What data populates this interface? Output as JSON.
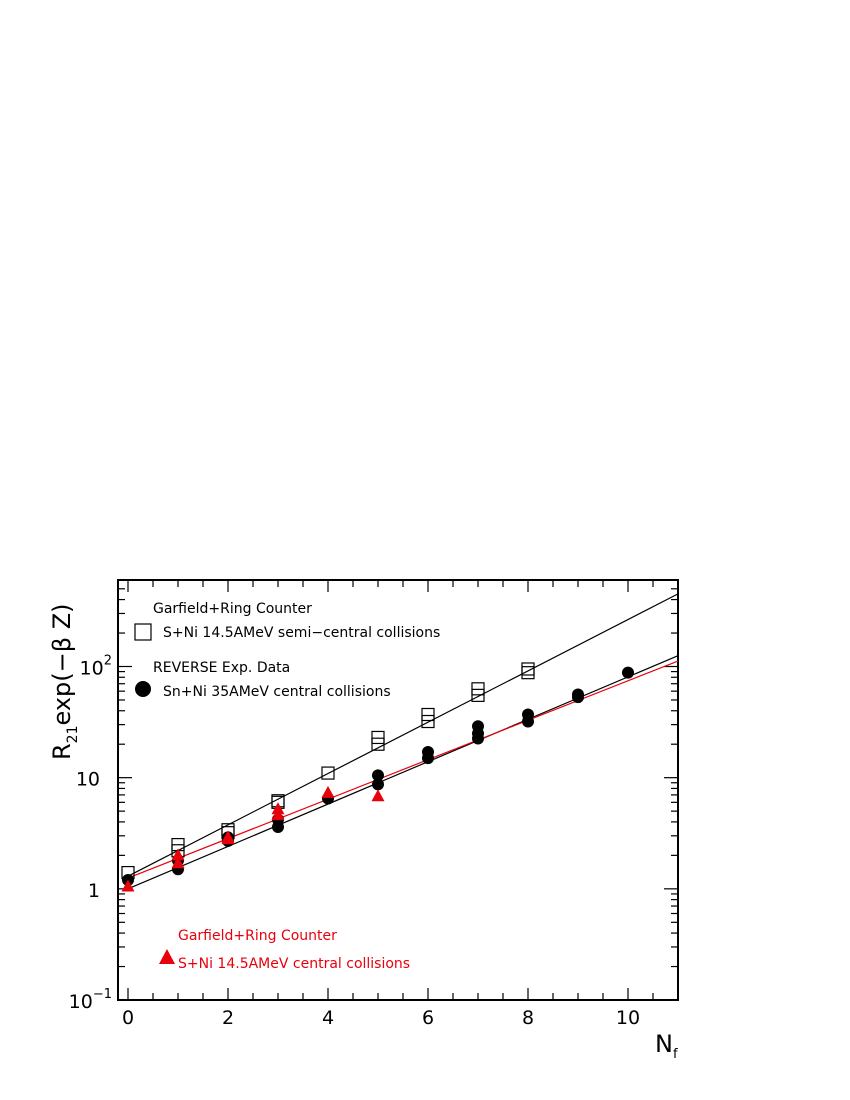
{
  "chart_data": {
    "type": "scatter",
    "title": "",
    "xlabel": {
      "main": "N",
      "sub": "f"
    },
    "ylabel": {
      "prefix": "R",
      "sub": "21",
      "suffix": "exp(−β Z)"
    },
    "xlim": [
      -0.2,
      11
    ],
    "ylim": [
      0.1,
      600
    ],
    "y_scale": "log",
    "grid": false,
    "x_ticks": [
      0,
      2,
      4,
      6,
      8,
      10
    ],
    "x_tick_labels": [
      "0",
      "2",
      "4",
      "6",
      "8",
      "10"
    ],
    "y_ticks": [
      {
        "value": 0.1,
        "base": "10",
        "exp": "−1"
      },
      {
        "value": 1,
        "base": "1",
        "exp": ""
      },
      {
        "value": 10,
        "base": "10",
        "exp": ""
      },
      {
        "value": 100,
        "base": "10",
        "exp": "2"
      }
    ],
    "legend_placement": "top-left and bottom-left (inside plot)",
    "series": [
      {
        "name": "Garfield+Ring Counter S+Ni 14.5AMeV semi-central collisions",
        "marker": "open-square",
        "color": "#000000",
        "points": [
          [
            0,
            1.4
          ],
          [
            1,
            2.2
          ],
          [
            1,
            2.5
          ],
          [
            2,
            3.2
          ],
          [
            2,
            3.4
          ],
          [
            3,
            6.0
          ],
          [
            3,
            6.2
          ],
          [
            4,
            11
          ],
          [
            5,
            20
          ],
          [
            5,
            23
          ],
          [
            6,
            32
          ],
          [
            6,
            37
          ],
          [
            7,
            55
          ],
          [
            7,
            63
          ],
          [
            8,
            88
          ],
          [
            8,
            95
          ]
        ],
        "fit": {
          "x": [
            0,
            11
          ],
          "y": [
            1.3,
            450
          ]
        }
      },
      {
        "name": "REVERSE Exp. Data Sn+Ni 35AMeV central collisions",
        "marker": "filled-circle",
        "color": "#000000",
        "points": [
          [
            0,
            1.2
          ],
          [
            1,
            1.5
          ],
          [
            1,
            1.8
          ],
          [
            2,
            2.7
          ],
          [
            2,
            2.9
          ],
          [
            3,
            3.6
          ],
          [
            3,
            4.2
          ],
          [
            4,
            6.5
          ],
          [
            5,
            8.7
          ],
          [
            5,
            10.5
          ],
          [
            6,
            15
          ],
          [
            6,
            17
          ],
          [
            7,
            22.5
          ],
          [
            7,
            25
          ],
          [
            7,
            29
          ],
          [
            8,
            32
          ],
          [
            8,
            37
          ],
          [
            9,
            53
          ],
          [
            9,
            56
          ],
          [
            10,
            88
          ]
        ],
        "fit": {
          "x": [
            0,
            11
          ],
          "y": [
            1.0,
            125
          ]
        }
      },
      {
        "name": "Garfield+Ring Counter S+Ni 14.5AMeV central collisions",
        "marker": "filled-triangle",
        "color": "#e8000b",
        "points": [
          [
            0,
            1.05
          ],
          [
            1,
            1.7
          ],
          [
            1,
            2.0
          ],
          [
            2,
            2.8
          ],
          [
            2,
            2.9
          ],
          [
            3,
            4.6
          ],
          [
            3,
            5.2
          ],
          [
            4,
            7.3
          ],
          [
            5,
            6.8
          ]
        ],
        "fit": {
          "x": [
            0,
            11
          ],
          "y": [
            1.25,
            112
          ]
        }
      }
    ],
    "legend": [
      {
        "series": 0,
        "line1": "Garfield+Ring Counter",
        "line2": "S+Ni 14.5AMeV semi−central collisions",
        "color": "#000000"
      },
      {
        "series": 1,
        "line1": "REVERSE Exp. Data",
        "line2": "Sn+Ni 35AMeV central collisions",
        "color": "#000000"
      },
      {
        "series": 2,
        "line1": "Garfield+Ring Counter",
        "line2": "S+Ni 14.5AMeV central collisions",
        "color": "#e8000b"
      }
    ]
  }
}
